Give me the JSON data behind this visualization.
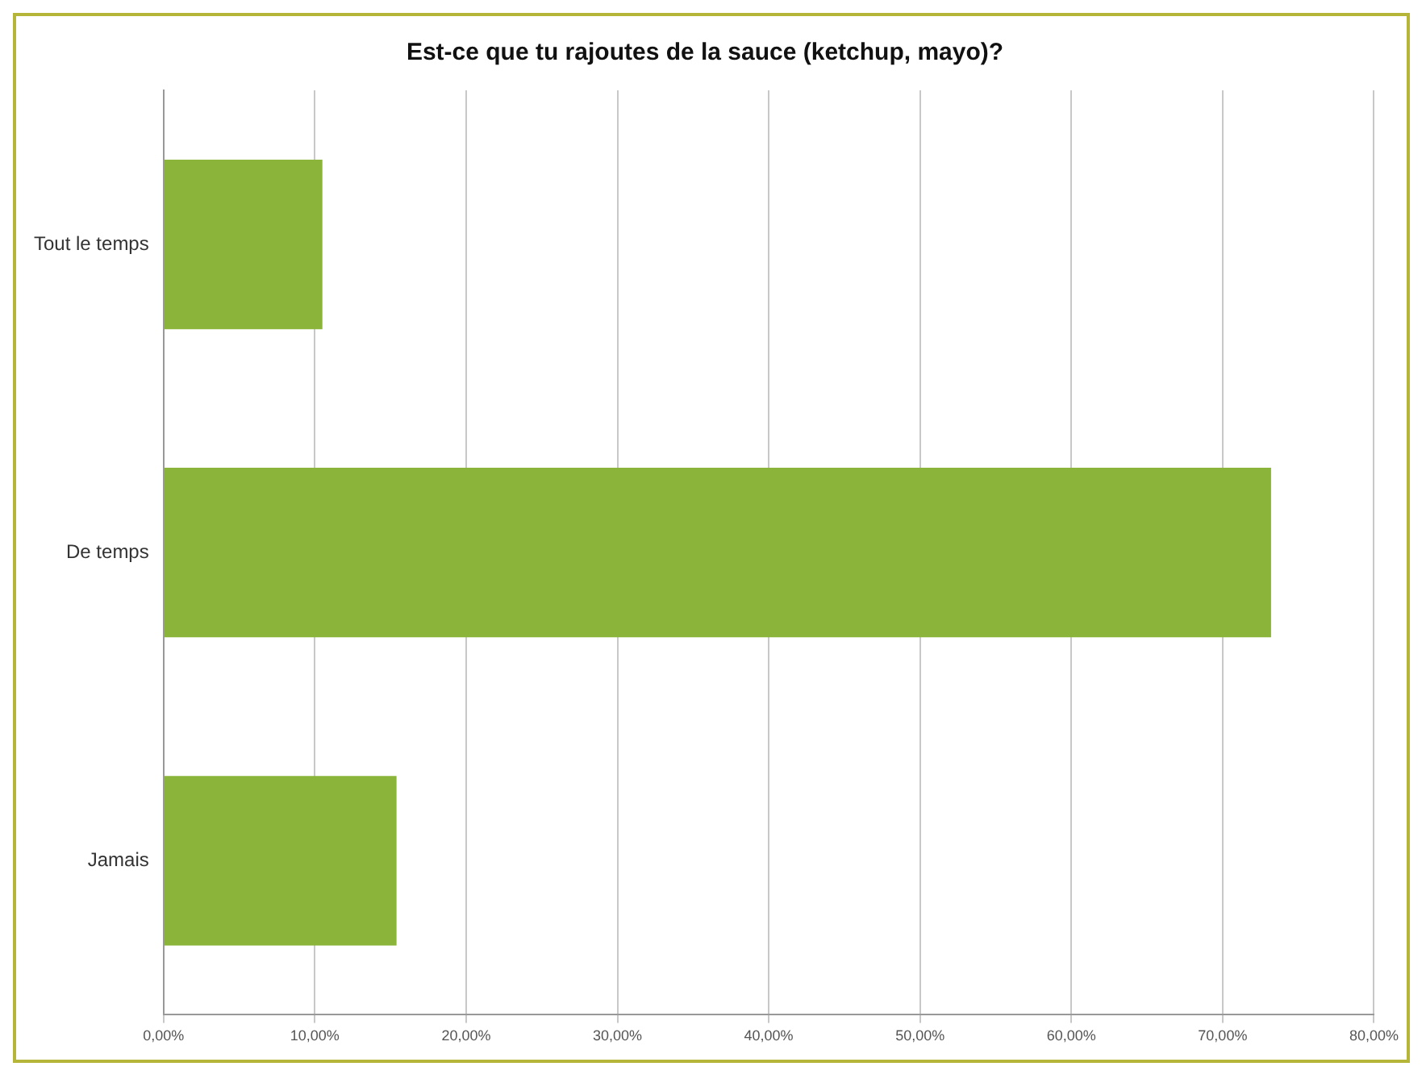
{
  "chart_data": {
    "type": "bar",
    "orientation": "horizontal",
    "title": "Est-ce que tu rajoutes de la sauce (ketchup, mayo)?",
    "categories": [
      "Tout le temps",
      "De temps",
      "Jamais"
    ],
    "values": [
      10.5,
      73.2,
      15.4
    ],
    "color": "#8ab43a",
    "xlim": [
      0,
      80
    ],
    "xticks": [
      {
        "value": 0,
        "label": "0,00%"
      },
      {
        "value": 10,
        "label": "10,00%"
      },
      {
        "value": 20,
        "label": "20,00%"
      },
      {
        "value": 30,
        "label": "30,00%"
      },
      {
        "value": 40,
        "label": "40,00%"
      },
      {
        "value": 50,
        "label": "50,00%"
      },
      {
        "value": 60,
        "label": "60,00%"
      },
      {
        "value": 70,
        "label": "70,00%"
      },
      {
        "value": 80,
        "label": "80,00%"
      }
    ],
    "grid": "x",
    "legend": false
  }
}
